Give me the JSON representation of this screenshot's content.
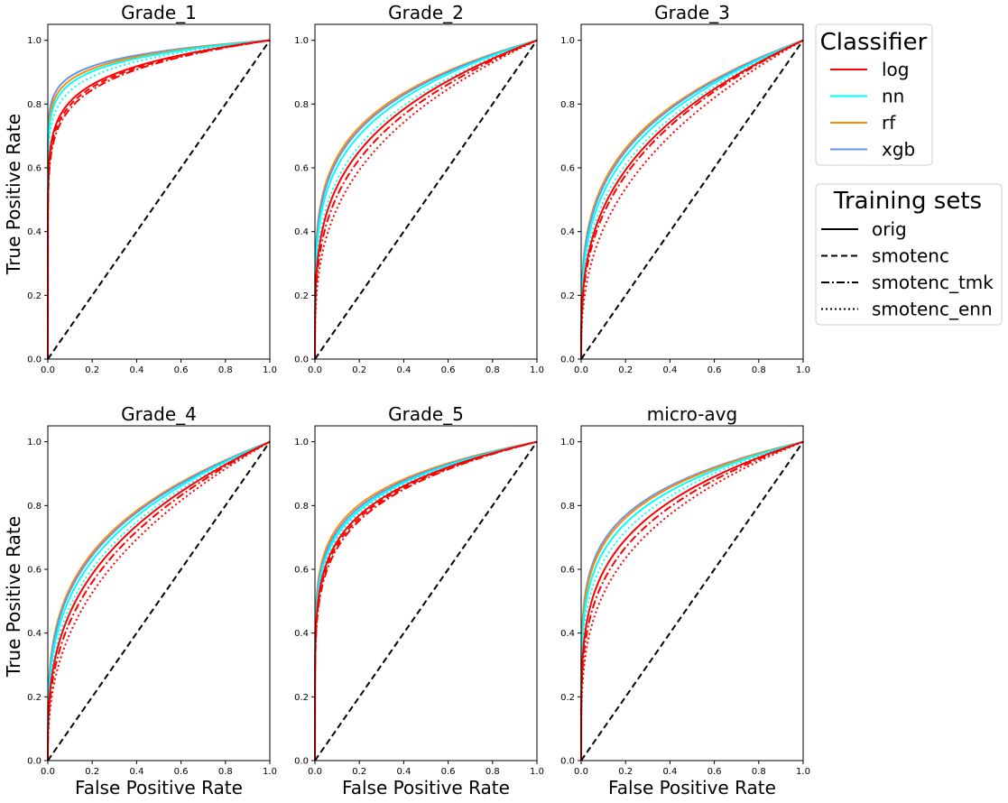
{
  "figure": {
    "ylabel": "True Positive Rate",
    "xlabel": "False Positive Rate"
  },
  "legends": {
    "classifier": {
      "title": "Classifier",
      "entries": [
        {
          "label": "log",
          "color": "#ff0000"
        },
        {
          "label": "nn",
          "color": "#00ffff"
        },
        {
          "label": "rf",
          "color": "#ff8c00"
        },
        {
          "label": "xgb",
          "color": "#6495ed"
        }
      ]
    },
    "training": {
      "title": "Training sets",
      "entries": [
        {
          "label": "orig",
          "dash": "solid"
        },
        {
          "label": "smotenc",
          "dash": "dashed"
        },
        {
          "label": "smotenc_tmk",
          "dash": "dashdot"
        },
        {
          "label": "smotenc_enn",
          "dash": "dotted"
        }
      ]
    }
  },
  "chart_data": [
    {
      "type": "line",
      "title": "Grade_1",
      "xlabel": "",
      "ylabel": "True Positive Rate",
      "xlim": [
        0,
        1
      ],
      "ylim": [
        0,
        1.05
      ],
      "xticks": [
        "0.0",
        "0.2",
        "0.4",
        "0.6",
        "0.8",
        "1.0"
      ],
      "yticks": [
        "0.0",
        "0.2",
        "0.4",
        "0.6",
        "0.8",
        "1.0"
      ],
      "diagonal": true,
      "series": [
        {
          "classifier": "xgb",
          "set": "orig",
          "auc": 0.95
        },
        {
          "classifier": "rf",
          "set": "orig",
          "auc": 0.945
        },
        {
          "classifier": "nn",
          "set": "orig",
          "auc": 0.94
        },
        {
          "classifier": "nn",
          "set": "smotenc_enn",
          "auc": 0.93
        },
        {
          "classifier": "log",
          "set": "orig",
          "auc": 0.915
        },
        {
          "classifier": "log",
          "set": "smotenc",
          "auc": 0.91
        },
        {
          "classifier": "log",
          "set": "smotenc_tmk",
          "auc": 0.905
        }
      ]
    },
    {
      "type": "line",
      "title": "Grade_2",
      "xlabel": "",
      "ylabel": "",
      "xlim": [
        0,
        1
      ],
      "ylim": [
        0,
        1.05
      ],
      "xticks": [
        "0.0",
        "0.2",
        "0.4",
        "0.6",
        "0.8",
        "1.0"
      ],
      "yticks": [
        "0.0",
        "0.2",
        "0.4",
        "0.6",
        "0.8",
        "1.0"
      ],
      "diagonal": true,
      "series": [
        {
          "classifier": "rf",
          "set": "orig",
          "auc": 0.835
        },
        {
          "classifier": "xgb",
          "set": "orig",
          "auc": 0.83
        },
        {
          "classifier": "nn",
          "set": "orig",
          "auc": 0.82
        },
        {
          "classifier": "nn",
          "set": "smotenc_enn",
          "auc": 0.8
        },
        {
          "classifier": "log",
          "set": "orig",
          "auc": 0.79
        },
        {
          "classifier": "log",
          "set": "smotenc_tmk",
          "auc": 0.775
        },
        {
          "classifier": "log",
          "set": "smotenc_enn",
          "auc": 0.755
        }
      ]
    },
    {
      "type": "line",
      "title": "Grade_3",
      "xlabel": "",
      "ylabel": "",
      "xlim": [
        0,
        1
      ],
      "ylim": [
        0,
        1.05
      ],
      "xticks": [
        "0.0",
        "0.2",
        "0.4",
        "0.6",
        "0.8",
        "1.0"
      ],
      "yticks": [
        "0.0",
        "0.2",
        "0.4",
        "0.6",
        "0.8",
        "1.0"
      ],
      "diagonal": true,
      "series": [
        {
          "classifier": "rf",
          "set": "orig",
          "auc": 0.795
        },
        {
          "classifier": "xgb",
          "set": "orig",
          "auc": 0.79
        },
        {
          "classifier": "nn",
          "set": "orig",
          "auc": 0.78
        },
        {
          "classifier": "nn",
          "set": "smotenc_enn",
          "auc": 0.765
        },
        {
          "classifier": "log",
          "set": "orig",
          "auc": 0.755
        },
        {
          "classifier": "log",
          "set": "smotenc_tmk",
          "auc": 0.745
        },
        {
          "classifier": "log",
          "set": "smotenc_enn",
          "auc": 0.72
        }
      ]
    },
    {
      "type": "line",
      "title": "Grade_4",
      "xlabel": "False Positive Rate",
      "ylabel": "True Positive Rate",
      "xlim": [
        0,
        1
      ],
      "ylim": [
        0,
        1.05
      ],
      "xticks": [
        "0.0",
        "0.2",
        "0.4",
        "0.6",
        "0.8",
        "1.0"
      ],
      "yticks": [
        "0.0",
        "0.2",
        "0.4",
        "0.6",
        "0.8",
        "1.0"
      ],
      "diagonal": true,
      "series": [
        {
          "classifier": "rf",
          "set": "orig",
          "auc": 0.79
        },
        {
          "classifier": "xgb",
          "set": "orig",
          "auc": 0.785
        },
        {
          "classifier": "nn",
          "set": "orig",
          "auc": 0.775
        },
        {
          "classifier": "nn",
          "set": "smotenc_enn",
          "auc": 0.76
        },
        {
          "classifier": "log",
          "set": "orig",
          "auc": 0.75
        },
        {
          "classifier": "log",
          "set": "smotenc_tmk",
          "auc": 0.735
        },
        {
          "classifier": "log",
          "set": "smotenc_enn",
          "auc": 0.715
        }
      ]
    },
    {
      "type": "line",
      "title": "Grade_5",
      "xlabel": "False Positive Rate",
      "ylabel": "",
      "xlim": [
        0,
        1
      ],
      "ylim": [
        0,
        1.05
      ],
      "xticks": [
        "0.0",
        "0.2",
        "0.4",
        "0.6",
        "0.8",
        "1.0"
      ],
      "yticks": [
        "0.0",
        "0.2",
        "0.4",
        "0.6",
        "0.8",
        "1.0"
      ],
      "diagonal": true,
      "series": [
        {
          "classifier": "rf",
          "set": "orig",
          "auc": 0.88
        },
        {
          "classifier": "xgb",
          "set": "orig",
          "auc": 0.875
        },
        {
          "classifier": "nn",
          "set": "orig",
          "auc": 0.87
        },
        {
          "classifier": "nn",
          "set": "smotenc_enn",
          "auc": 0.865
        },
        {
          "classifier": "log",
          "set": "orig",
          "auc": 0.86
        },
        {
          "classifier": "log",
          "set": "smotenc_tmk",
          "auc": 0.85
        },
        {
          "classifier": "log",
          "set": "smotenc",
          "auc": 0.855
        }
      ]
    },
    {
      "type": "line",
      "title": "micro-avg",
      "xlabel": "False Positive Rate",
      "ylabel": "",
      "xlim": [
        0,
        1
      ],
      "ylim": [
        0,
        1.05
      ],
      "xticks": [
        "0.0",
        "0.2",
        "0.4",
        "0.6",
        "0.8",
        "1.0"
      ],
      "yticks": [
        "0.0",
        "0.2",
        "0.4",
        "0.6",
        "0.8",
        "1.0"
      ],
      "diagonal": true,
      "series": [
        {
          "classifier": "xgb",
          "set": "orig",
          "auc": 0.86
        },
        {
          "classifier": "rf",
          "set": "orig",
          "auc": 0.855
        },
        {
          "classifier": "nn",
          "set": "orig",
          "auc": 0.845
        },
        {
          "classifier": "nn",
          "set": "smotenc_enn",
          "auc": 0.83
        },
        {
          "classifier": "log",
          "set": "orig",
          "auc": 0.815
        },
        {
          "classifier": "log",
          "set": "smotenc_tmk",
          "auc": 0.8
        },
        {
          "classifier": "log",
          "set": "smotenc_enn",
          "auc": 0.78
        }
      ]
    }
  ]
}
